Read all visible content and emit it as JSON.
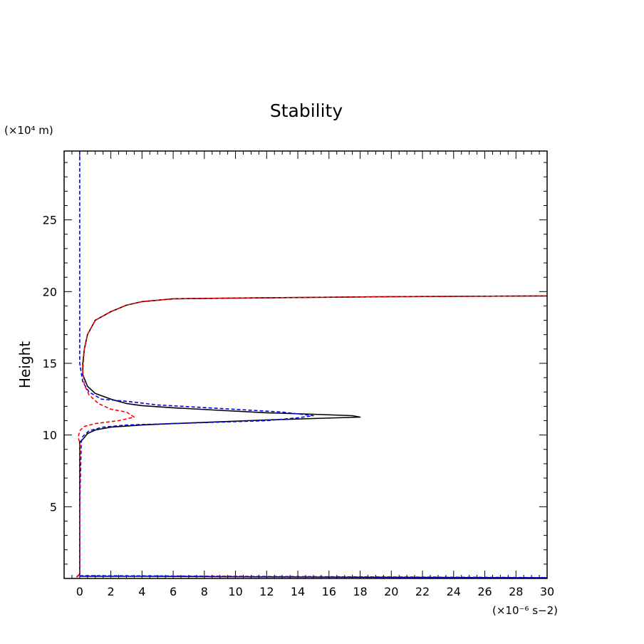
{
  "chart_data": {
    "type": "line",
    "title": "Stability",
    "xlabel": "",
    "ylabel": "Height",
    "x_unit": "(×10⁻⁶ s−2)",
    "y_unit": "(×10⁴ m)",
    "xlim": [
      -1,
      30
    ],
    "ylim": [
      0,
      29.8
    ],
    "x_ticks": [
      0,
      2,
      4,
      6,
      8,
      10,
      12,
      14,
      16,
      18,
      20,
      22,
      24,
      26,
      28,
      30
    ],
    "y_ticks": [
      5,
      10,
      15,
      20,
      25
    ],
    "grid": false,
    "legend": "none",
    "series": [
      {
        "color": "#000000",
        "dash": "solid",
        "points": [
          [
            -0.2,
            0.1
          ],
          [
            0,
            0.3
          ],
          [
            0,
            5
          ],
          [
            0,
            9.5
          ],
          [
            0.2,
            9.7
          ],
          [
            0.5,
            10.1
          ],
          [
            1,
            10.35
          ],
          [
            2,
            10.55
          ],
          [
            4,
            10.7
          ],
          [
            6,
            10.8
          ],
          [
            9,
            10.92
          ],
          [
            12,
            11.05
          ],
          [
            15,
            11.15
          ],
          [
            18,
            11.25
          ],
          [
            17.5,
            11.35
          ],
          [
            15,
            11.45
          ],
          [
            12,
            11.55
          ],
          [
            9,
            11.72
          ],
          [
            6,
            11.9
          ],
          [
            4,
            12.05
          ],
          [
            3,
            12.2
          ],
          [
            2,
            12.5
          ],
          [
            1,
            12.9
          ],
          [
            0.5,
            13.4
          ],
          [
            0.2,
            14.2
          ],
          [
            0.2,
            15
          ],
          [
            0.3,
            16
          ],
          [
            0.5,
            17
          ],
          [
            1,
            18
          ],
          [
            2,
            18.6
          ],
          [
            3,
            19.05
          ],
          [
            4,
            19.3
          ],
          [
            6,
            19.5
          ],
          [
            10,
            19.55
          ],
          [
            20,
            19.65
          ],
          [
            30,
            19.7
          ]
        ]
      },
      {
        "color": "#0000ff",
        "dash": "dashed",
        "points": [
          [
            0,
            29.8
          ],
          [
            0,
            27
          ],
          [
            0,
            20
          ],
          [
            0,
            15
          ],
          [
            0.2,
            13.7
          ],
          [
            0.6,
            13.0
          ],
          [
            1.4,
            12.5
          ],
          [
            3,
            12.35
          ],
          [
            5,
            12.1
          ],
          [
            9,
            11.85
          ],
          [
            13,
            11.6
          ],
          [
            15,
            11.35
          ],
          [
            14,
            11.2
          ],
          [
            12,
            11.0
          ],
          [
            9,
            10.9
          ],
          [
            6,
            10.8
          ],
          [
            3,
            10.7
          ],
          [
            1.5,
            10.55
          ],
          [
            0.6,
            10.3
          ],
          [
            0.2,
            9.9
          ],
          [
            0.1,
            9.5
          ],
          [
            0,
            5
          ],
          [
            0,
            0.3
          ],
          [
            -0.2,
            0.1
          ]
        ]
      },
      {
        "color": "#ff0000",
        "dash": "dashed",
        "points": [
          [
            -0.2,
            0.1
          ],
          [
            0,
            0.3
          ],
          [
            0,
            5
          ],
          [
            0,
            9.5
          ],
          [
            -0.1,
            9.8
          ],
          [
            0,
            10.3
          ],
          [
            0.3,
            10.6
          ],
          [
            1,
            10.8
          ],
          [
            2.5,
            11.0
          ],
          [
            3.5,
            11.25
          ],
          [
            3,
            11.6
          ],
          [
            2,
            11.8
          ],
          [
            1.2,
            12.2
          ],
          [
            0.6,
            12.8
          ],
          [
            0.3,
            13.5
          ],
          [
            0.2,
            14.5
          ],
          [
            0.3,
            16
          ],
          [
            0.5,
            17
          ],
          [
            1,
            18
          ],
          [
            2,
            18.6
          ],
          [
            3,
            19.05
          ],
          [
            4,
            19.3
          ],
          [
            6,
            19.5
          ],
          [
            10,
            19.55
          ],
          [
            20,
            19.65
          ],
          [
            30,
            19.7
          ]
        ]
      },
      {
        "color": "#000000",
        "dash": "solid",
        "points": [
          [
            0,
            0.15
          ],
          [
            5,
            0.15
          ],
          [
            10,
            0.12
          ],
          [
            15,
            0.1
          ],
          [
            20,
            0.08
          ],
          [
            25,
            0.06
          ],
          [
            30,
            0.05
          ]
        ]
      },
      {
        "color": "#ff0000",
        "dash": "dashed",
        "points": [
          [
            0,
            0.2
          ],
          [
            5,
            0.18
          ],
          [
            10,
            0.15
          ],
          [
            15,
            0.12
          ],
          [
            20,
            0.1
          ],
          [
            25,
            0.08
          ],
          [
            30,
            0.05
          ]
        ]
      },
      {
        "color": "#0000ff",
        "dash": "dashed",
        "points": [
          [
            0,
            0.18
          ],
          [
            10,
            0.14
          ],
          [
            20,
            0.1
          ],
          [
            30,
            0.06
          ]
        ]
      }
    ]
  }
}
